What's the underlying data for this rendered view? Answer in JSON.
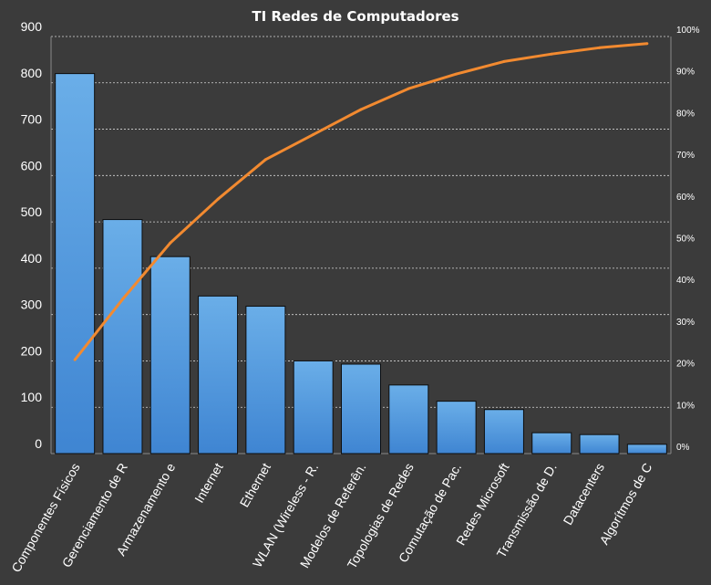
{
  "chart_data": {
    "type": "bar",
    "title": "TI Redes de Computadores",
    "xlabel": "",
    "ylabel": "",
    "ylim": [
      0,
      900
    ],
    "y_ticks": [
      0,
      100,
      200,
      300,
      400,
      500,
      600,
      700,
      800,
      900
    ],
    "y2lim": [
      0,
      100
    ],
    "y2_ticks": [
      "0%",
      "10%",
      "20%",
      "30%",
      "40%",
      "50%",
      "60%",
      "70%",
      "80%",
      "90%",
      "100%"
    ],
    "grid": true,
    "categories": [
      "Componentes Físicos",
      "Gerenciamento de R",
      "Armazenamento e",
      "Internet",
      "Ethernet",
      "WLAN (Wireless - R.",
      "Modelos de Referên.",
      "Topologias de Redes",
      "Comutação de Pac.",
      "Redes Microsoft",
      "Transmissão de D.",
      "Datacenters",
      "Algorítmos de C"
    ],
    "series": [
      {
        "type": "bar",
        "values": [
          820,
          505,
          425,
          340,
          318,
          200,
          193,
          148,
          113,
          95,
          45,
          41,
          20
        ],
        "color": "#4a8fd9"
      },
      {
        "type": "line",
        "axis": "right",
        "unit": "%",
        "values": [
          22.5,
          37,
          50.5,
          61,
          70.5,
          76.5,
          82.5,
          87.5,
          91,
          94,
          95.8,
          97.3,
          98.3
        ],
        "color": "#f28a30"
      }
    ]
  }
}
